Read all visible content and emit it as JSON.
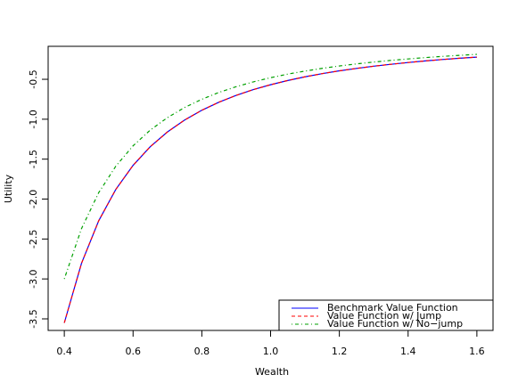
{
  "chart_data": {
    "type": "line",
    "xlabel": "Wealth",
    "ylabel": "Utility",
    "x": [
      0.4,
      0.45,
      0.5,
      0.55,
      0.6,
      0.65,
      0.7,
      0.75,
      0.8,
      0.85,
      0.9,
      0.95,
      1.0,
      1.05,
      1.1,
      1.15,
      1.2,
      1.25,
      1.3,
      1.35,
      1.4,
      1.45,
      1.5,
      1.55,
      1.6
    ],
    "series": [
      {
        "name": "Benchmark Value Function",
        "color": "#0000ff",
        "linestyle": "solid",
        "values": [
          -3.55,
          -2.805,
          -2.272,
          -1.878,
          -1.578,
          -1.344,
          -1.159,
          -1.01,
          -0.8875,
          -0.786,
          -0.701,
          -0.629,
          -0.568,
          -0.515,
          -0.469,
          -0.429,
          -0.394,
          -0.364,
          -0.336,
          -0.312,
          -0.29,
          -0.27,
          -0.252,
          -0.236,
          -0.222
        ]
      },
      {
        "name": "Value Function w/ Jump",
        "color": "#ff0000",
        "linestyle": "dashed",
        "values": [
          -3.55,
          -2.805,
          -2.272,
          -1.878,
          -1.578,
          -1.344,
          -1.159,
          -1.01,
          -0.8875,
          -0.786,
          -0.701,
          -0.629,
          -0.568,
          -0.515,
          -0.469,
          -0.429,
          -0.394,
          -0.364,
          -0.336,
          -0.312,
          -0.29,
          -0.27,
          -0.252,
          -0.236,
          -0.222
        ]
      },
      {
        "name": "Value Function w/ No−jump",
        "color": "#00a000",
        "linestyle": "dotdash",
        "values": [
          -3.0,
          -2.37,
          -1.92,
          -1.587,
          -1.333,
          -1.136,
          -0.98,
          -0.853,
          -0.75,
          -0.664,
          -0.593,
          -0.532,
          -0.48,
          -0.435,
          -0.397,
          -0.363,
          -0.333,
          -0.307,
          -0.284,
          -0.263,
          -0.245,
          -0.228,
          -0.213,
          -0.2,
          -0.1875
        ]
      }
    ],
    "xlim": [
      0.353,
      1.647
    ],
    "ylim": [
      -3.645,
      -0.087
    ],
    "xticks": [
      0.4,
      0.6,
      0.8,
      {
        "value": 1,
        "label": "1.0"
      },
      1.2,
      1.4,
      1.6
    ],
    "yticks": [
      -3.5,
      {
        "value": -3,
        "label": "-3.0"
      },
      -2.5,
      {
        "value": -2,
        "label": "-2.0"
      },
      -1.5,
      {
        "value": -1,
        "label": "-1.0"
      },
      -0.5
    ],
    "legend": "bottomright"
  }
}
